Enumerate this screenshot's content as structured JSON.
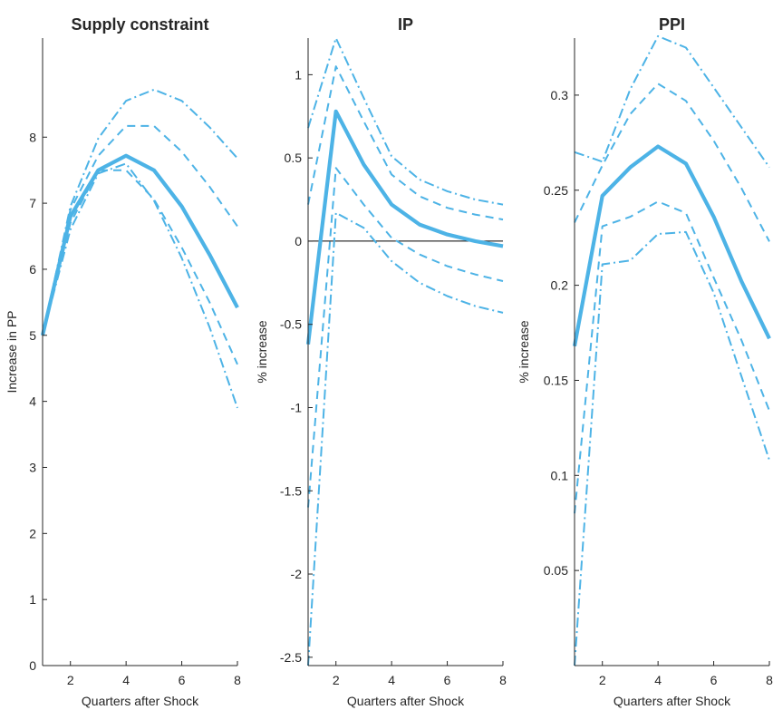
{
  "colors": {
    "series": "#4DB3E6",
    "axis": "#262626",
    "zero": "#000000"
  },
  "chart_data": [
    {
      "type": "line",
      "title": "Supply constraint",
      "xlabel": "Quarters after Shock",
      "ylabel": "Increase in PP",
      "xlim": [
        1,
        8
      ],
      "ylim": [
        0,
        9.5
      ],
      "xticks": [
        2,
        4,
        6,
        8
      ],
      "yticks": [
        0,
        1,
        2,
        3,
        4,
        5,
        6,
        7,
        8
      ],
      "ytick_labels": [
        "0",
        "1",
        "2",
        "3",
        "4",
        "5",
        "6",
        "7",
        "8"
      ],
      "x": [
        1,
        2,
        3,
        4,
        5,
        6,
        7,
        8
      ],
      "zero_line": false,
      "series": [
        {
          "style": "solid",
          "values": [
            5.0,
            6.8,
            7.5,
            7.72,
            7.5,
            6.95,
            6.22,
            5.42
          ]
        },
        {
          "style": "dashed",
          "values": [
            5.0,
            6.9,
            7.72,
            8.17,
            8.17,
            7.78,
            7.25,
            6.65
          ]
        },
        {
          "style": "dashed",
          "values": [
            5.0,
            6.7,
            7.5,
            7.5,
            7.06,
            6.33,
            5.5,
            4.56
          ]
        },
        {
          "style": "dashdot",
          "values": [
            5.0,
            6.95,
            7.98,
            8.55,
            8.72,
            8.55,
            8.15,
            7.68
          ]
        },
        {
          "style": "dashdot",
          "values": [
            5.0,
            6.6,
            7.45,
            7.6,
            7.04,
            6.17,
            5.12,
            3.9
          ]
        }
      ]
    },
    {
      "type": "line",
      "title": "IP",
      "xlabel": "Quarters after Shock",
      "ylabel": "% increase",
      "xlim": [
        1,
        8
      ],
      "ylim": [
        -2.55,
        1.22
      ],
      "xticks": [
        2,
        4,
        6,
        8
      ],
      "yticks": [
        -2.5,
        -2,
        -1.5,
        -1,
        -0.5,
        0,
        0.5,
        1
      ],
      "ytick_labels": [
        "-2.5",
        "-2",
        "-1.5",
        "-1",
        "-0.5",
        "0",
        "0.5",
        "1"
      ],
      "x": [
        1,
        2,
        3,
        4,
        5,
        6,
        7,
        8
      ],
      "zero_line": true,
      "series": [
        {
          "style": "solid",
          "values": [
            -0.62,
            0.78,
            0.46,
            0.22,
            0.1,
            0.04,
            0.0,
            -0.03
          ]
        },
        {
          "style": "dashed",
          "values": [
            0.22,
            1.05,
            0.72,
            0.4,
            0.27,
            0.2,
            0.16,
            0.13
          ]
        },
        {
          "style": "dashed",
          "values": [
            -1.6,
            0.44,
            0.22,
            0.02,
            -0.08,
            -0.15,
            -0.2,
            -0.24
          ]
        },
        {
          "style": "dashdot",
          "values": [
            0.68,
            1.22,
            0.86,
            0.51,
            0.37,
            0.3,
            0.25,
            0.22
          ]
        },
        {
          "style": "dashdot",
          "values": [
            -2.55,
            0.17,
            0.08,
            -0.12,
            -0.25,
            -0.33,
            -0.39,
            -0.43
          ]
        }
      ]
    },
    {
      "type": "line",
      "title": "PPI",
      "xlabel": "Quarters after Shock",
      "ylabel": "% increase",
      "xlim": [
        1,
        8
      ],
      "ylim": [
        0,
        0.33
      ],
      "xticks": [
        2,
        4,
        6,
        8
      ],
      "yticks": [
        0.05,
        0.1,
        0.15,
        0.2,
        0.25,
        0.3
      ],
      "ytick_labels": [
        "0.05",
        "0.1",
        "0.15",
        "0.2",
        "0.25",
        "0.3"
      ],
      "x": [
        1,
        2,
        3,
        4,
        5,
        6,
        7,
        8
      ],
      "zero_line": false,
      "series": [
        {
          "style": "solid",
          "values": [
            0.168,
            0.247,
            0.262,
            0.273,
            0.264,
            0.236,
            0.202,
            0.172
          ]
        },
        {
          "style": "dashed",
          "values": [
            0.233,
            0.263,
            0.29,
            0.306,
            0.297,
            0.276,
            0.251,
            0.223
          ]
        },
        {
          "style": "dashed",
          "values": [
            0.08,
            0.231,
            0.236,
            0.244,
            0.238,
            0.204,
            0.171,
            0.134
          ]
        },
        {
          "style": "dashdot",
          "values": [
            0.27,
            0.265,
            0.303,
            0.331,
            0.325,
            0.304,
            0.283,
            0.262
          ]
        },
        {
          "style": "dashdot",
          "values": [
            0.0,
            0.211,
            0.213,
            0.227,
            0.228,
            0.196,
            0.152,
            0.108
          ]
        }
      ]
    }
  ]
}
